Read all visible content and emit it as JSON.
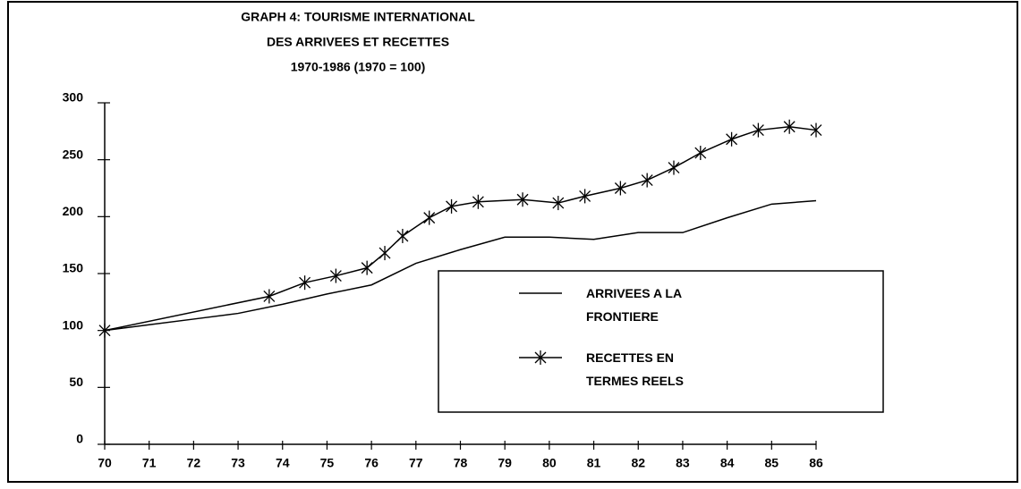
{
  "chart_data": {
    "type": "line",
    "title": [
      "GRAPH 4: TOURISME INTERNATIONAL",
      "DES ARRIVEES ET RECETTES",
      "1970-1986 (1970 = 100)"
    ],
    "series": [
      {
        "name": "ARRIVEES A LA FRONTIERE",
        "color": "#000000",
        "marker": "none",
        "x": [
          70,
          71,
          72,
          73,
          74,
          75,
          76,
          77,
          78,
          79,
          80,
          81,
          82,
          83,
          84,
          85,
          86
        ],
        "values": [
          100,
          105,
          110,
          115,
          123,
          132,
          140,
          159,
          171,
          182,
          182,
          180,
          186,
          186,
          199,
          211,
          214
        ]
      },
      {
        "name": "RECETTES EN TERMES REELS",
        "color": "#000000",
        "marker": "star",
        "x": [
          70,
          73.7,
          74.5,
          75.2,
          75.9,
          76.3,
          76.7,
          77.3,
          77.8,
          78.4,
          79.4,
          80.2,
          80.8,
          81.6,
          82.2,
          82.8,
          83.4,
          84.1,
          84.7,
          85.4,
          86
        ],
        "values": [
          100,
          130,
          142,
          148,
          155,
          168,
          183,
          199,
          209,
          213,
          215,
          212,
          218,
          225,
          232,
          243,
          256,
          268,
          276,
          279,
          276
        ]
      }
    ],
    "xlim": [
      70,
      86
    ],
    "xticks": [
      70,
      71,
      72,
      73,
      74,
      75,
      76,
      77,
      78,
      79,
      80,
      81,
      82,
      83,
      84,
      85,
      86
    ],
    "ylim": [
      0,
      300
    ],
    "yticks": [
      0,
      50,
      100,
      150,
      200,
      250,
      300
    ],
    "grid": false,
    "legend": "center-right"
  }
}
